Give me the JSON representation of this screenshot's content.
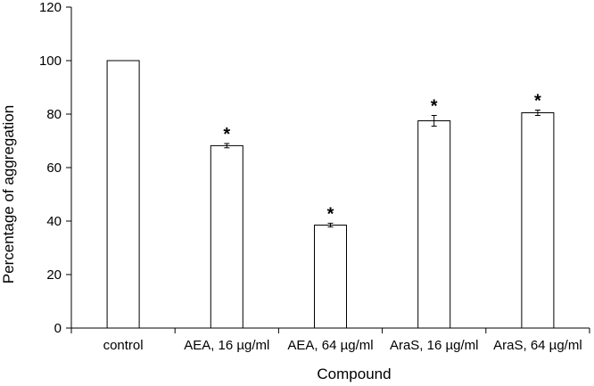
{
  "chart_data": {
    "type": "bar",
    "xlabel": "Compound",
    "ylabel": "Percentage of aggregation",
    "ylim": [
      0,
      120
    ],
    "yticks": [
      0,
      20,
      40,
      60,
      80,
      100,
      120
    ],
    "categories": [
      "control",
      "AEA, 16 µg/ml",
      "AEA, 64 µg/ml",
      "AraS, 16 µg/ml",
      "AraS, 64 µg/ml"
    ],
    "values": [
      100,
      68.2,
      38.5,
      77.5,
      80.5
    ],
    "errors": [
      0,
      0.8,
      0.7,
      2.0,
      1.0
    ],
    "significance": [
      "",
      "*",
      "*",
      "*",
      "*"
    ],
    "bar_fill": "#ffffff",
    "bar_stroke": "#000000",
    "grid": false,
    "legend": "none"
  }
}
